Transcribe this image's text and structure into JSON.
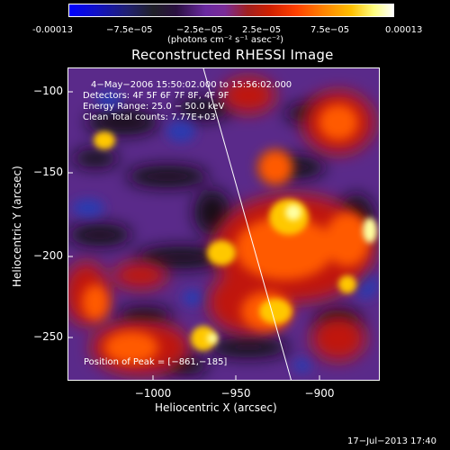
{
  "colorbar": {
    "ticks": [
      "-0.00013",
      "−7.5e−05",
      "−2.5e−05",
      "2.5e−05",
      "7.5e−05",
      "0.00013"
    ],
    "units": "(photons cm⁻² s⁻¹ asec⁻²)"
  },
  "title": "Reconstructed RHESSI Image",
  "annotations": {
    "time_range": "4−May−2006 15:50:02.000 to 15:56:02.000",
    "detectors": "Detectors: 4F 5F 6F 7F 8F, 4F 9F",
    "energy": "Energy Range: 25.0 − 50.0 keV",
    "clean": "Clean     Total counts: 7.77E+03",
    "peak": "Position of Peak = [−861,−185]"
  },
  "axes": {
    "xlabel": "Heliocentric X (arcsec)",
    "ylabel": "Heliocentric Y (arcsec)",
    "xticks": [
      "−1000",
      "−950",
      "−900"
    ],
    "yticks": [
      "−100",
      "−150",
      "−200",
      "−250"
    ]
  },
  "timestamp": "17−Jul−2013 17:40",
  "colors": {
    "background": "#000000",
    "limb_line": "#ffffff"
  }
}
